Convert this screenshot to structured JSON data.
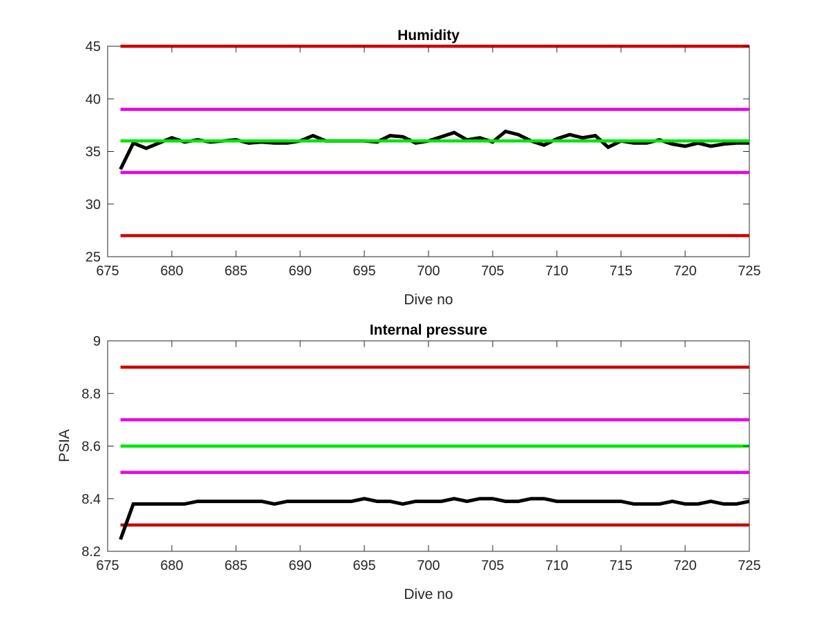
{
  "chart_data": [
    {
      "type": "line",
      "title": "Humidity",
      "xlabel": "Dive no",
      "ylabel": "",
      "xlim": [
        675,
        725
      ],
      "ylim": [
        25,
        45
      ],
      "xticks": [
        "675",
        "680",
        "685",
        "690",
        "695",
        "700",
        "705",
        "710",
        "715",
        "720",
        "725"
      ],
      "yticks": [
        "25",
        "30",
        "35",
        "40",
        "45"
      ],
      "grid": false,
      "series": [
        {
          "color": "#000000",
          "role": "data",
          "x": [
            676,
            677,
            678,
            679,
            680,
            681,
            682,
            683,
            684,
            685,
            686,
            687,
            688,
            689,
            690,
            691,
            692,
            693,
            694,
            695,
            696,
            697,
            698,
            699,
            700,
            701,
            702,
            703,
            704,
            705,
            706,
            707,
            708,
            709,
            710,
            711,
            712,
            713,
            714,
            715,
            716,
            717,
            718,
            719,
            720,
            721,
            722,
            723,
            724,
            725
          ],
          "y": [
            33.3,
            35.8,
            35.3,
            35.8,
            36.3,
            35.9,
            36.1,
            35.9,
            36.0,
            36.1,
            35.8,
            35.9,
            35.8,
            35.8,
            36.0,
            36.5,
            36.0,
            36.0,
            36.0,
            36.0,
            35.9,
            36.5,
            36.4,
            35.8,
            36.0,
            36.4,
            36.8,
            36.1,
            36.3,
            35.9,
            36.9,
            36.6,
            36.0,
            35.6,
            36.2,
            36.6,
            36.3,
            36.5,
            35.4,
            36.0,
            35.8,
            35.8,
            36.1,
            35.7,
            35.5,
            35.8,
            35.5,
            35.7,
            35.8,
            35.8
          ]
        },
        {
          "color": "#cc0000",
          "role": "limit",
          "x": [
            676,
            725
          ],
          "y": [
            45,
            45
          ]
        },
        {
          "color": "#e600e6",
          "role": "limit",
          "x": [
            676,
            725
          ],
          "y": [
            39,
            39
          ]
        },
        {
          "color": "#00e600",
          "role": "target",
          "x": [
            676,
            725
          ],
          "y": [
            36,
            36
          ]
        },
        {
          "color": "#e600e6",
          "role": "limit",
          "x": [
            676,
            725
          ],
          "y": [
            33,
            33
          ]
        },
        {
          "color": "#cc0000",
          "role": "limit",
          "x": [
            676,
            725
          ],
          "y": [
            27,
            27
          ]
        }
      ]
    },
    {
      "type": "line",
      "title": "Internal pressure",
      "xlabel": "Dive no",
      "ylabel": "PSIA",
      "xlim": [
        675,
        725
      ],
      "ylim": [
        8.2,
        9
      ],
      "xticks": [
        "675",
        "680",
        "685",
        "690",
        "695",
        "700",
        "705",
        "710",
        "715",
        "720",
        "725"
      ],
      "yticks": [
        "8.2",
        "8.4",
        "8.6",
        "8.8",
        "9"
      ],
      "grid": false,
      "series": [
        {
          "color": "#cc0000",
          "role": "limit",
          "x": [
            676,
            725
          ],
          "y": [
            8.9,
            8.9
          ]
        },
        {
          "color": "#e600e6",
          "role": "limit",
          "x": [
            676,
            725
          ],
          "y": [
            8.7,
            8.7
          ]
        },
        {
          "color": "#00e600",
          "role": "target",
          "x": [
            676,
            725
          ],
          "y": [
            8.6,
            8.6
          ]
        },
        {
          "color": "#e600e6",
          "role": "limit",
          "x": [
            676,
            725
          ],
          "y": [
            8.5,
            8.5
          ]
        },
        {
          "color": "#cc0000",
          "role": "limit",
          "x": [
            676,
            725
          ],
          "y": [
            8.3,
            8.3
          ]
        },
        {
          "color": "#000000",
          "role": "data",
          "x": [
            676,
            677,
            678,
            679,
            680,
            681,
            682,
            683,
            684,
            685,
            686,
            687,
            688,
            689,
            690,
            691,
            692,
            693,
            694,
            695,
            696,
            697,
            698,
            699,
            700,
            701,
            702,
            703,
            704,
            705,
            706,
            707,
            708,
            709,
            710,
            711,
            712,
            713,
            714,
            715,
            716,
            717,
            718,
            719,
            720,
            721,
            722,
            723,
            724,
            725
          ],
          "y": [
            8.245,
            8.38,
            8.38,
            8.38,
            8.38,
            8.38,
            8.39,
            8.39,
            8.39,
            8.39,
            8.39,
            8.39,
            8.38,
            8.39,
            8.39,
            8.39,
            8.39,
            8.39,
            8.39,
            8.4,
            8.39,
            8.39,
            8.38,
            8.39,
            8.39,
            8.39,
            8.4,
            8.39,
            8.4,
            8.4,
            8.39,
            8.39,
            8.4,
            8.4,
            8.39,
            8.39,
            8.39,
            8.39,
            8.39,
            8.39,
            8.38,
            8.38,
            8.38,
            8.39,
            8.38,
            8.38,
            8.39,
            8.38,
            8.38,
            8.39
          ]
        }
      ]
    }
  ]
}
